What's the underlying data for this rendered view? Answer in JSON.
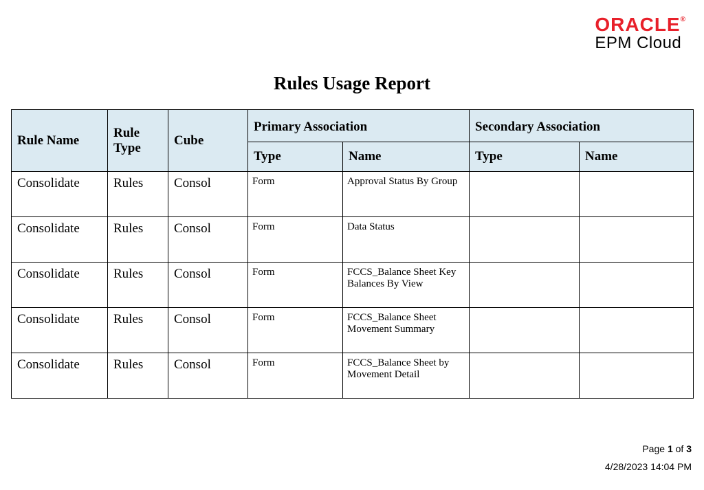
{
  "brand": {
    "name": "ORACLE",
    "reg": "®",
    "product": "EPM Cloud",
    "color": "#e8202a"
  },
  "report": {
    "title": "Rules Usage Report",
    "columns": {
      "rule_name": "Rule Name",
      "rule_type": "Rule Type",
      "cube": "Cube",
      "primary_group": "Primary Association",
      "secondary_group": "Secondary Association",
      "type": "Type",
      "name": "Name"
    },
    "rows": [
      {
        "rule_name": "Consolidate",
        "rule_type": "Rules",
        "cube": "Consol",
        "p_type": "Form",
        "p_name": "Approval Status By Group",
        "s_type": "",
        "s_name": ""
      },
      {
        "rule_name": "Consolidate",
        "rule_type": "Rules",
        "cube": "Consol",
        "p_type": "Form",
        "p_name": "Data Status",
        "s_type": "",
        "s_name": ""
      },
      {
        "rule_name": "Consolidate",
        "rule_type": "Rules",
        "cube": "Consol",
        "p_type": "Form",
        "p_name": "FCCS_Balance Sheet Key Balances By View",
        "s_type": "",
        "s_name": ""
      },
      {
        "rule_name": "Consolidate",
        "rule_type": "Rules",
        "cube": "Consol",
        "p_type": "Form",
        "p_name": "FCCS_Balance Sheet Movement Summary",
        "s_type": "",
        "s_name": ""
      },
      {
        "rule_name": "Consolidate",
        "rule_type": "Rules",
        "cube": "Consol",
        "p_type": "Form",
        "p_name": "FCCS_Balance Sheet by Movement Detail",
        "s_type": "",
        "s_name": ""
      }
    ]
  },
  "footer": {
    "page_label_pre": "Page ",
    "page_current": "1",
    "page_label_mid": " of ",
    "page_total": "3",
    "timestamp": "4/28/2023 14:04 PM"
  }
}
